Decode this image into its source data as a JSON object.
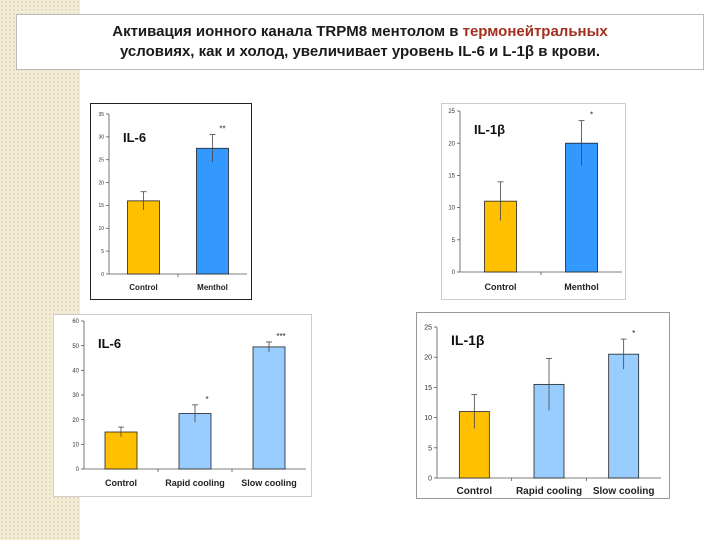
{
  "title": {
    "line1_a": "Активация ионного канала TRPM8 ментолом в ",
    "line1_b": "термонейтральных",
    "line2": "условиях, как и холод, увеличивает уровень IL-6  и  L-1β  в  крови."
  },
  "colors": {
    "control": "#ffc000",
    "blue": "#3399ff",
    "light_blue": "#99ccff",
    "red_title": "#a3301e"
  },
  "chart_data": [
    {
      "type": "bar",
      "title": "IL-6",
      "categories": [
        "Control",
        "Menthol"
      ],
      "values": [
        16,
        27.5
      ],
      "errors": [
        2,
        3
      ],
      "significance": [
        "",
        "**"
      ],
      "bar_colors": [
        "#ffc000",
        "#3399ff"
      ],
      "ylim": [
        0,
        35
      ],
      "yticks": [
        "0",
        "5",
        "10",
        "15",
        "20",
        "25",
        "30",
        "35"
      ],
      "xlabel": "",
      "ylabel": ""
    },
    {
      "type": "bar",
      "title": "IL-1β",
      "categories": [
        "Control",
        "Menthol"
      ],
      "values": [
        11,
        20
      ],
      "errors": [
        3,
        3.5
      ],
      "significance": [
        "",
        "*"
      ],
      "bar_colors": [
        "#ffc000",
        "#3399ff"
      ],
      "ylim": [
        0,
        25
      ],
      "yticks": [
        "0",
        "5",
        "10",
        "15",
        "20",
        "25"
      ],
      "xlabel": "",
      "ylabel": ""
    },
    {
      "type": "bar",
      "title": "IL-6",
      "categories": [
        "Control",
        "Rapid cooling",
        "Slow cooling"
      ],
      "values": [
        15,
        22.5,
        49.5
      ],
      "errors": [
        2,
        3.5,
        2
      ],
      "significance": [
        "",
        "*",
        "***"
      ],
      "bar_colors": [
        "#ffc000",
        "#99ccff",
        "#99ccff"
      ],
      "ylim": [
        0,
        60
      ],
      "yticks": [
        "0",
        "10",
        "20",
        "30",
        "40",
        "50",
        "60"
      ],
      "xlabel": "",
      "ylabel": ""
    },
    {
      "type": "bar",
      "title": "IL-1β",
      "categories": [
        "Control",
        "Rapid cooling",
        "Slow cooling"
      ],
      "values": [
        11,
        15.5,
        20.5
      ],
      "errors": [
        2.8,
        4.3,
        2.5
      ],
      "significance": [
        "",
        "",
        "*"
      ],
      "bar_colors": [
        "#ffc000",
        "#99ccff",
        "#99ccff"
      ],
      "ylim": [
        0,
        25
      ],
      "yticks": [
        "0",
        "5",
        "10",
        "15",
        "20",
        "25"
      ],
      "xlabel": "",
      "ylabel": ""
    }
  ]
}
